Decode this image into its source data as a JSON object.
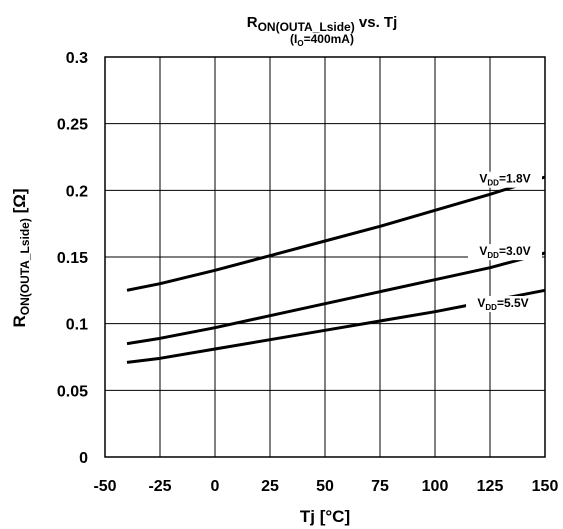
{
  "chart_data": {
    "type": "line",
    "title": {
      "main": "R",
      "main_sub": "ON(OUTA_Lside)",
      "main_suffix": " vs. Tj",
      "cond_open": "(I",
      "cond_sub": "O",
      "cond_close": "=400mA)"
    },
    "xlabel": "Tj [°C]",
    "ylabel": {
      "main": "R",
      "sub": "ON(OUTA_Lside)",
      "suffix": " [Ω]"
    },
    "xlim": [
      -50,
      150
    ],
    "ylim": [
      0,
      0.3
    ],
    "x_ticks": [
      "-50",
      "-25",
      "0",
      "25",
      "50",
      "75",
      "100",
      "125",
      "150"
    ],
    "y_ticks": [
      "0",
      "0.05",
      "0.1",
      "0.15",
      "0.2",
      "0.25",
      "0.3"
    ],
    "grid": true,
    "series": [
      {
        "name": "V_DD=1.8V",
        "label": {
          "main": "V",
          "sub": "DD",
          "suffix": "=1.8V"
        },
        "x": [
          -40,
          -25,
          0,
          25,
          50,
          75,
          100,
          125,
          150
        ],
        "y": [
          0.125,
          0.13,
          0.14,
          0.151,
          0.162,
          0.173,
          0.185,
          0.197,
          0.21
        ]
      },
      {
        "name": "V_DD=3.0V",
        "label": {
          "main": "V",
          "sub": "DD",
          "suffix": "=3.0V"
        },
        "x": [
          -40,
          -25,
          0,
          25,
          50,
          75,
          100,
          125,
          150
        ],
        "y": [
          0.085,
          0.089,
          0.097,
          0.106,
          0.115,
          0.124,
          0.133,
          0.142,
          0.153
        ]
      },
      {
        "name": "V_DD=5.5V",
        "label": {
          "main": "V",
          "sub": "DD",
          "suffix": "=5.5V"
        },
        "x": [
          -40,
          -25,
          0,
          25,
          50,
          75,
          100,
          125,
          150
        ],
        "y": [
          0.071,
          0.074,
          0.081,
          0.088,
          0.095,
          0.102,
          0.109,
          0.117,
          0.125
        ]
      }
    ]
  }
}
